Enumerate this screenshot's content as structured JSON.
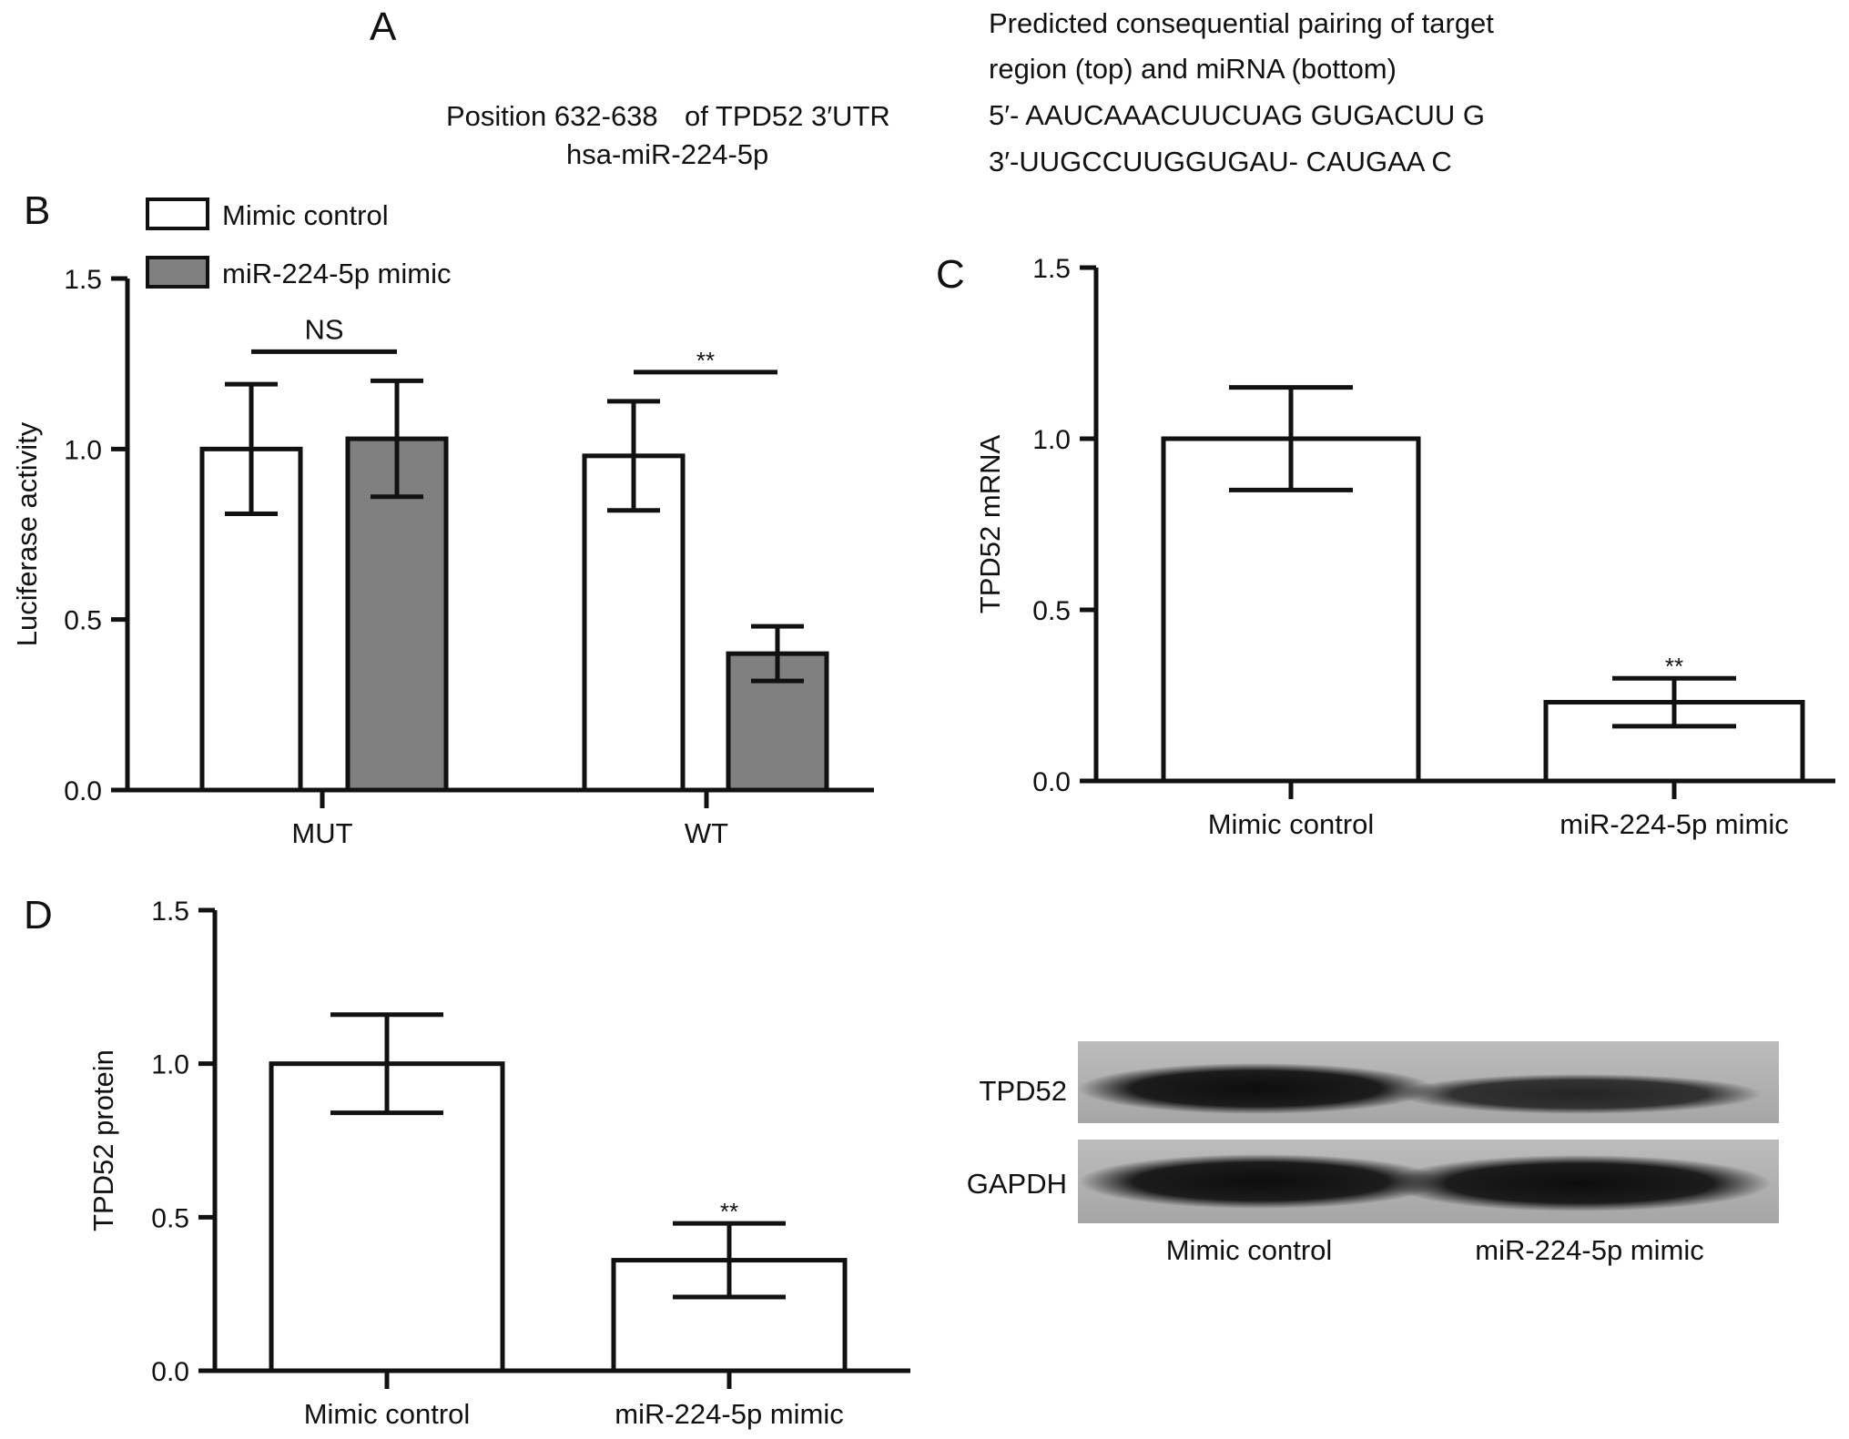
{
  "panel_a": {
    "letter": "A",
    "position_label": "Position 632-638",
    "of_label": "of TPD52 3′UTR",
    "mirna_label": "hsa-miR-224-5p",
    "heading_line1": "Predicted consequential pairing of target",
    "heading_line2": "region (top) and miRNA (bottom)",
    "target_seq": "5′- AAUCAAACUUCUAG GUGACUU G",
    "mirna_seq": "3′-UUGCCUUGGUGAU- CAUGAA C"
  },
  "panel_b": {
    "letter": "B"
  },
  "panel_c": {
    "letter": "C"
  },
  "panel_d": {
    "letter": "D"
  },
  "legend": {
    "items": [
      {
        "label": "Mimic control",
        "color": "#ffffff"
      },
      {
        "label": "miR-224-5p mimic",
        "color": "#808080"
      }
    ]
  },
  "western_blot": {
    "rows": [
      "TPD52",
      "GAPDH"
    ],
    "lanes": [
      "Mimic control",
      "miR-224-5p mimic"
    ]
  },
  "chart_data": [
    {
      "panel": "B",
      "type": "bar",
      "categories": [
        "MUT",
        "WT"
      ],
      "series": [
        {
          "name": "Mimic control",
          "values": [
            1.0,
            0.98
          ],
          "errors": [
            0.19,
            0.16
          ],
          "color": "#ffffff"
        },
        {
          "name": "miR-224-5p mimic",
          "values": [
            1.03,
            0.4
          ],
          "errors": [
            0.17,
            0.08
          ],
          "color": "#808080"
        }
      ],
      "ylabel": "Luciferase activity",
      "ylim": [
        0,
        1.5
      ],
      "yticks": [
        "0.0",
        "0.5",
        "1.0",
        "1.5"
      ],
      "annotations": [
        {
          "category": "MUT",
          "text": "NS"
        },
        {
          "category": "WT",
          "text": "**"
        }
      ]
    },
    {
      "panel": "C",
      "type": "bar",
      "categories": [
        "Mimic control",
        "miR-224-5p mimic"
      ],
      "values": [
        1.0,
        0.23
      ],
      "errors": [
        0.15,
        0.07
      ],
      "ylabel": "TPD52 mRNA",
      "ylim": [
        0,
        1.5
      ],
      "yticks": [
        "0.0",
        "0.5",
        "1.0",
        "1.5"
      ],
      "annotations": [
        {
          "category": "miR-224-5p mimic",
          "text": "**"
        }
      ]
    },
    {
      "panel": "D",
      "type": "bar",
      "categories": [
        "Mimic control",
        "miR-224-5p mimic"
      ],
      "values": [
        1.0,
        0.36
      ],
      "errors": [
        0.16,
        0.12
      ],
      "ylabel": "TPD52 protein",
      "ylim": [
        0,
        1.5
      ],
      "yticks": [
        "0.0",
        "0.5",
        "1.0",
        "1.5"
      ],
      "annotations": [
        {
          "category": "miR-224-5p mimic",
          "text": "**"
        }
      ]
    }
  ]
}
